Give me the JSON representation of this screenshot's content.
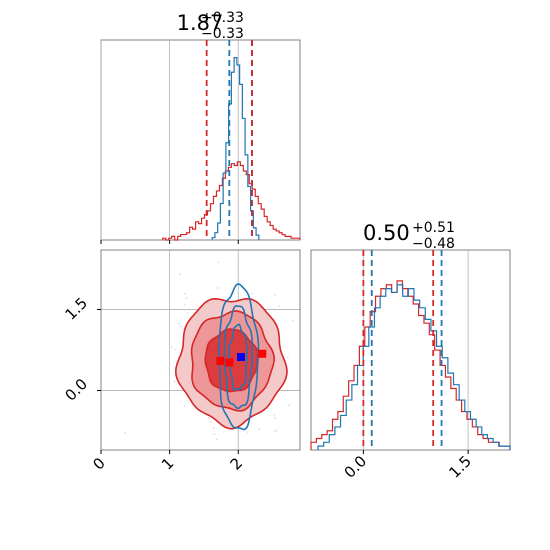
{
  "chart_data": {
    "type": "corner",
    "colors": {
      "series_a": "#d62728",
      "series_b": "#1f77b4",
      "grid": "#b0b0b0",
      "truth": "#0000ff"
    },
    "param1": {
      "title_value": "1.87",
      "title_plus": "+0.33",
      "title_minus": "−0.33",
      "xlim": [
        0,
        2.9
      ],
      "ticks": [
        0,
        1,
        2
      ],
      "tick_labels": [
        "0",
        "1",
        "2"
      ],
      "quantiles_red": [
        1.54,
        2.2
      ],
      "quantiles_blue": [
        1.87,
        2.2
      ],
      "hist_red": [
        1,
        0,
        1,
        2,
        0,
        2,
        3,
        3,
        4,
        7,
        6,
        10,
        9,
        12,
        14,
        16,
        20,
        24,
        27,
        30,
        34,
        38,
        40,
        42,
        41,
        43,
        41,
        38,
        36,
        31,
        28,
        24,
        20,
        17,
        13,
        10,
        8,
        6,
        5,
        4,
        3,
        2,
        2,
        1,
        1,
        1
      ],
      "hist_red_range": [
        0.9,
        2.9
      ],
      "hist_blue": [
        2,
        6,
        14,
        30,
        55,
        80,
        112,
        138,
        150,
        144,
        128,
        100,
        70,
        44,
        24,
        10,
        4
      ],
      "hist_blue_range": [
        1.62,
        2.3
      ]
    },
    "param2": {
      "title_value": "0.50",
      "title_plus": "+0.51",
      "title_minus": "−0.48",
      "xlim": [
        -0.75,
        2.1
      ],
      "ylim": [
        -1.1,
        2.6
      ],
      "ticks": [
        0.0,
        1.5
      ],
      "tick_labels": [
        "0.0",
        "1.5"
      ],
      "quantiles_red": [
        0.0,
        1.0
      ],
      "quantiles_blue": [
        0.12,
        1.12
      ],
      "hist_red": [
        2,
        3,
        4,
        5,
        8,
        10,
        14,
        18,
        22,
        27,
        32,
        36,
        40,
        42,
        43,
        41,
        44,
        42,
        40,
        38,
        35,
        33,
        30,
        26,
        22,
        19,
        16,
        13,
        10,
        8,
        6,
        4,
        3,
        2,
        2,
        1,
        1
      ],
      "hist_red_range": [
        -0.75,
        2.1
      ],
      "hist_blue": [
        1,
        2,
        4,
        6,
        9,
        13,
        17,
        22,
        27,
        32,
        37,
        40,
        42,
        41,
        43,
        40,
        42,
        39,
        37,
        34,
        31,
        27,
        24,
        20,
        17,
        13,
        10,
        8,
        6,
        4,
        3,
        2,
        1,
        1
      ],
      "hist_blue_range": [
        -0.65,
        2.1
      ]
    },
    "joint": {
      "red_center": [
        1.9,
        0.55
      ],
      "red_sigma": [
        0.33,
        0.5
      ],
      "blue_center": [
        2.0,
        0.6
      ],
      "blue_sigma": [
        0.15,
        0.7
      ],
      "red_markers": [
        [
          1.74,
          0.55
        ],
        [
          1.87,
          0.52
        ],
        [
          2.35,
          0.68
        ]
      ],
      "blue_markers": [
        [
          2.04,
          0.62
        ]
      ]
    }
  }
}
